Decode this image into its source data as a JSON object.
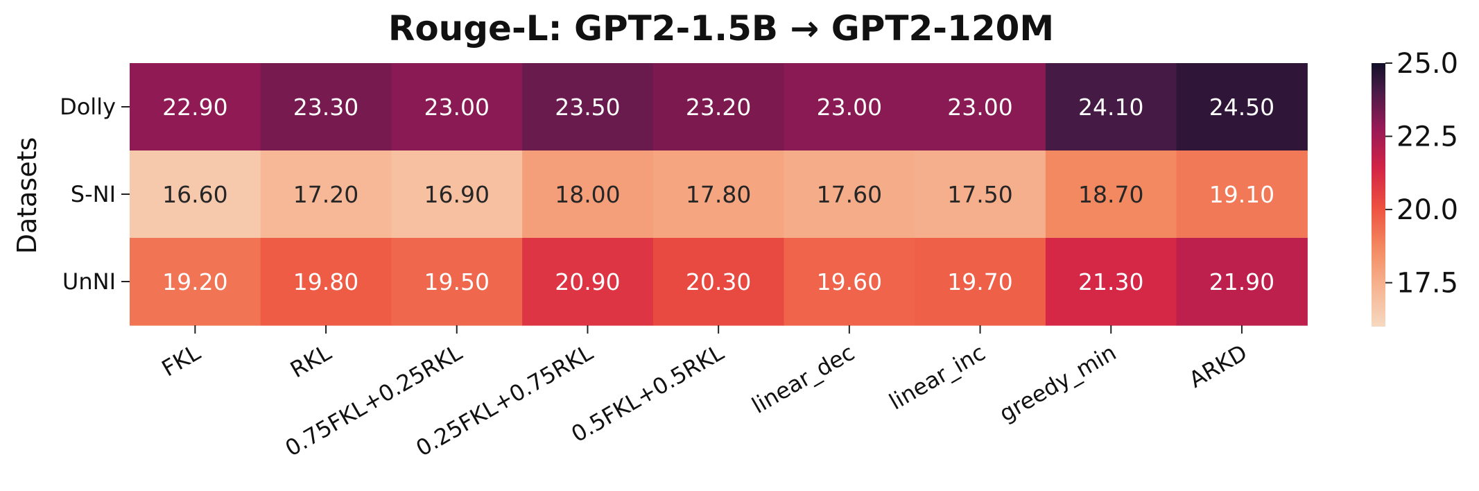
{
  "chart_data": {
    "type": "heatmap",
    "title": "Rouge-L: GPT2-1.5B → GPT2-120M",
    "xlabel": "",
    "ylabel": "Datasets",
    "x_categories": [
      "FKL",
      "RKL",
      "0.75FKL+0.25RKL",
      "0.25FKL+0.75RKL",
      "0.5FKL+0.5RKL",
      "linear_dec",
      "linear_inc",
      "greedy_min",
      "ARKD"
    ],
    "y_categories": [
      "Dolly",
      "S-NI",
      "UnNI"
    ],
    "values": [
      [
        22.9,
        23.3,
        23.0,
        23.5,
        23.2,
        23.0,
        23.0,
        24.1,
        24.5
      ],
      [
        16.6,
        17.2,
        16.9,
        18.0,
        17.8,
        17.6,
        17.5,
        18.7,
        19.1
      ],
      [
        19.2,
        19.8,
        19.5,
        20.9,
        20.3,
        19.6,
        19.7,
        21.3,
        21.9
      ]
    ],
    "value_format_decimals": 2,
    "colormap": "rocket_r",
    "colorbar": {
      "range": [
        16.0,
        25.0
      ],
      "ticks": [
        17.5,
        20.0,
        22.5,
        25.0
      ],
      "tick_labels": [
        "17.5",
        "20.0",
        "22.5",
        "25.0"
      ],
      "placement": "right"
    },
    "grid": false,
    "legend": "none"
  }
}
